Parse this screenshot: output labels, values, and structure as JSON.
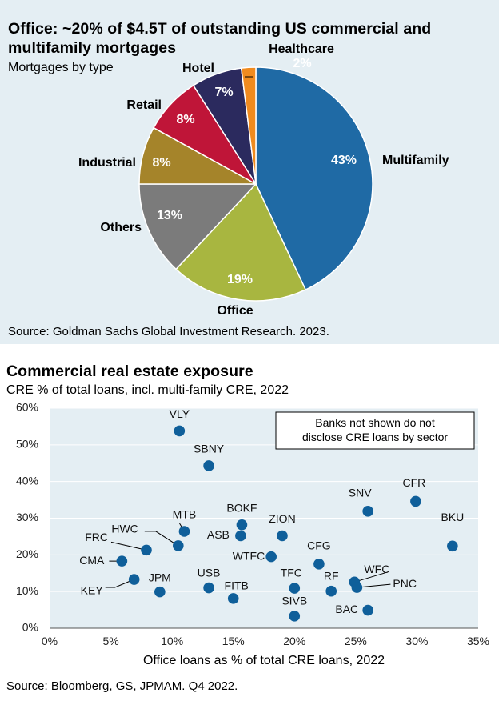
{
  "pie_panel": {
    "title": "Office: ~20% of $4.5T of outstanding US commercial and multifamily mortgages",
    "subtitle": "Mortgages by type",
    "source": "Source: Goldman Sachs Global Investment Research. 2023."
  },
  "scatter_panel": {
    "title": "Commercial real estate exposure",
    "subtitle": "CRE % of total loans, incl. multi-family CRE, 2022",
    "note_lines": [
      "Banks not shown do not",
      "disclose CRE loans by sector"
    ],
    "source": "Source: Bloomberg, GS, JPMAM. Q4 2022."
  },
  "chart_data": [
    {
      "type": "pie",
      "title": "Office: ~20% of $4.5T of outstanding US commercial and multifamily mortgages",
      "subtitle": "Mortgages by type",
      "slices": [
        {
          "label": "Multifamily",
          "value": 43,
          "pct_label": "43%",
          "color": "#1f6aa5"
        },
        {
          "label": "Office",
          "value": 19,
          "pct_label": "19%",
          "color": "#a8b640"
        },
        {
          "label": "Others",
          "value": 13,
          "pct_label": "13%",
          "color": "#7b7b7b"
        },
        {
          "label": "Industrial",
          "value": 8,
          "pct_label": "8%",
          "color": "#a5842a"
        },
        {
          "label": "Retail",
          "value": 8,
          "pct_label": "8%",
          "color": "#bf1538"
        },
        {
          "label": "Hotel",
          "value": 7,
          "pct_label": "7%",
          "color": "#2b2a5e"
        },
        {
          "label": "Healthcare",
          "value": 2,
          "pct_label": "2%",
          "color": "#f08b1f"
        }
      ]
    },
    {
      "type": "scatter",
      "title": "Commercial real estate exposure",
      "subtitle": "CRE % of total loans, incl. multi-family CRE, 2022",
      "xlabel": "Office loans as % of total CRE loans, 2022",
      "ylabel": "",
      "xlim": [
        0,
        35
      ],
      "ylim": [
        0,
        60
      ],
      "x_ticks": [
        0,
        5,
        10,
        15,
        20,
        25,
        30,
        35
      ],
      "y_ticks": [
        0,
        10,
        20,
        30,
        40,
        50,
        60
      ],
      "x_tick_labels": [
        "0%",
        "5%",
        "10%",
        "15%",
        "20%",
        "25%",
        "30%",
        "35%"
      ],
      "y_tick_labels": [
        "0%",
        "10%",
        "20%",
        "30%",
        "40%",
        "50%",
        "60%"
      ],
      "grid": true,
      "point_color": "#0f5f9a",
      "points": [
        {
          "label": "VLY",
          "x": 10.6,
          "y": 53.8
        },
        {
          "label": "SBNY",
          "x": 13.0,
          "y": 44.3
        },
        {
          "label": "CFR",
          "x": 29.9,
          "y": 34.6
        },
        {
          "label": "SNV",
          "x": 26.0,
          "y": 31.9
        },
        {
          "label": "BOKF",
          "x": 15.7,
          "y": 28.2
        },
        {
          "label": "MTB",
          "x": 11.0,
          "y": 26.4
        },
        {
          "label": "ASB",
          "x": 15.6,
          "y": 25.2
        },
        {
          "label": "ZION",
          "x": 19.0,
          "y": 25.2
        },
        {
          "label": "HWC",
          "x": 10.5,
          "y": 22.5
        },
        {
          "label": "BKU",
          "x": 32.9,
          "y": 22.4
        },
        {
          "label": "FRC",
          "x": 7.9,
          "y": 21.3
        },
        {
          "label": "WTFC",
          "x": 18.1,
          "y": 19.5
        },
        {
          "label": "CMA",
          "x": 5.9,
          "y": 18.3
        },
        {
          "label": "CFG",
          "x": 22.0,
          "y": 17.5
        },
        {
          "label": "KEY",
          "x": 6.9,
          "y": 13.3
        },
        {
          "label": "WFC",
          "x": 24.9,
          "y": 12.6
        },
        {
          "label": "PNC",
          "x": 25.1,
          "y": 11.1
        },
        {
          "label": "USB",
          "x": 13.0,
          "y": 11.0
        },
        {
          "label": "TFC",
          "x": 20.0,
          "y": 10.9
        },
        {
          "label": "RF",
          "x": 23.0,
          "y": 10.1
        },
        {
          "label": "JPM",
          "x": 9.0,
          "y": 9.9
        },
        {
          "label": "FITB",
          "x": 15.0,
          "y": 8.1
        },
        {
          "label": "BAC",
          "x": 26.0,
          "y": 4.9
        },
        {
          "label": "SIVB",
          "x": 20.0,
          "y": 3.3
        }
      ]
    }
  ]
}
